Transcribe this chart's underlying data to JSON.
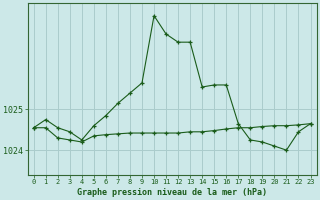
{
  "bg_color": "#cce8e8",
  "grid_color": "#aacccc",
  "line_color": "#1a5c1a",
  "axis_color": "#336633",
  "text_color": "#1a5c1a",
  "xlabel": "Graphe pression niveau de la mer (hPa)",
  "yticks": [
    1024,
    1025
  ],
  "ylim": [
    1023.4,
    1027.6
  ],
  "xlim": [
    -0.5,
    23.5
  ],
  "x_labels": [
    "0",
    "1",
    "2",
    "3",
    "4",
    "5",
    "6",
    "7",
    "8",
    "9",
    "10",
    "11",
    "12",
    "13",
    "14",
    "15",
    "16",
    "17",
    "18",
    "19",
    "20",
    "21",
    "22",
    "23"
  ],
  "line1_x": [
    0,
    1,
    2,
    3,
    4,
    5,
    6,
    7,
    8,
    9,
    10,
    11,
    12,
    13,
    14,
    15,
    16,
    17,
    18,
    19,
    20,
    21,
    22,
    23
  ],
  "line1_y": [
    1024.55,
    1024.75,
    1024.55,
    1024.45,
    1024.25,
    1024.6,
    1024.85,
    1025.15,
    1025.4,
    1025.65,
    1027.3,
    1026.85,
    1026.65,
    1026.65,
    1025.55,
    1025.6,
    1025.6,
    1024.65,
    1024.25,
    1024.2,
    1024.1,
    1024.0,
    1024.45,
    1024.65
  ],
  "line2_x": [
    0,
    1,
    2,
    3,
    4,
    5,
    6,
    7,
    8,
    9,
    10,
    11,
    12,
    13,
    14,
    15,
    16,
    17,
    18,
    19,
    20,
    21,
    22,
    23
  ],
  "line2_y": [
    1024.55,
    1024.55,
    1024.3,
    1024.25,
    1024.2,
    1024.35,
    1024.38,
    1024.4,
    1024.42,
    1024.42,
    1024.42,
    1024.42,
    1024.42,
    1024.45,
    1024.45,
    1024.48,
    1024.52,
    1024.55,
    1024.55,
    1024.58,
    1024.6,
    1024.6,
    1024.62,
    1024.65
  ]
}
